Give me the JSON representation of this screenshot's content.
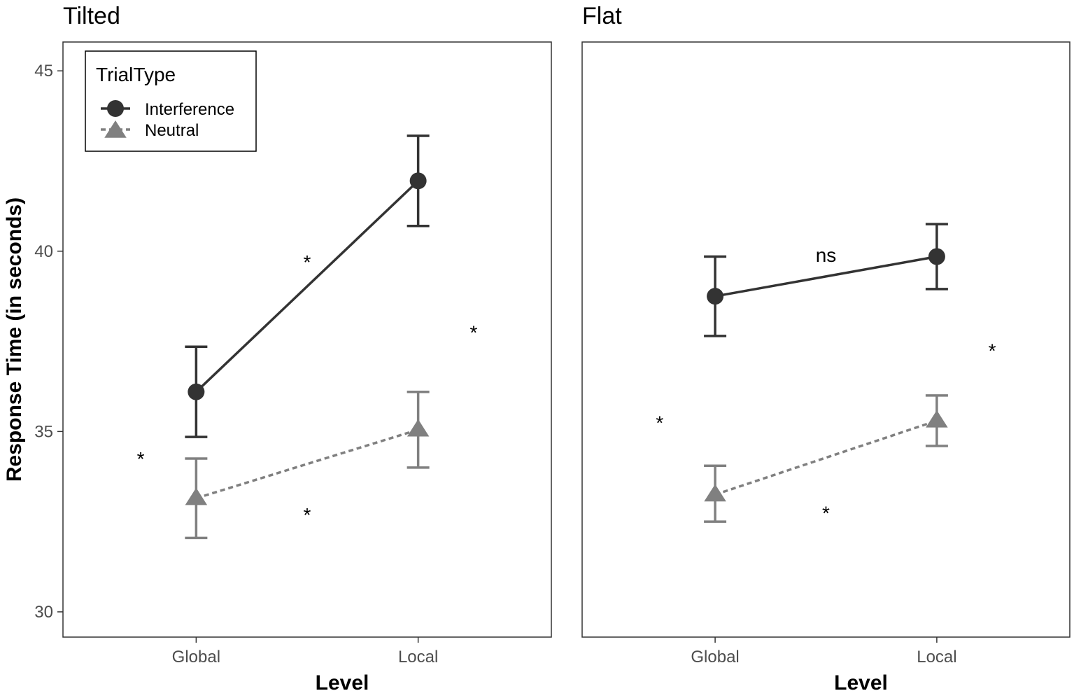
{
  "chart_data": {
    "type": "line",
    "ylabel": "Response Time (in seconds)",
    "xlabel": "Level",
    "categories": [
      "Global",
      "Local"
    ],
    "ylim": [
      29.3,
      45.8
    ],
    "yticks": [
      30,
      35,
      40,
      45
    ],
    "grid": false,
    "legend": {
      "title": "TrialType",
      "placement": "top-left inside first panel",
      "entries": [
        {
          "name": "Interference",
          "color": "#333333",
          "marker": "circle",
          "line": "solid"
        },
        {
          "name": "Neutral",
          "color": "#808080",
          "marker": "triangle",
          "line": "dashed"
        }
      ]
    },
    "panels": [
      {
        "title": "Tilted",
        "series": [
          {
            "name": "Interference",
            "values": [
              36.1,
              41.95
            ],
            "lower": [
              34.85,
              40.7
            ],
            "upper": [
              37.35,
              43.2
            ]
          },
          {
            "name": "Neutral",
            "values": [
              33.15,
              35.05
            ],
            "lower": [
              32.05,
              34.0
            ],
            "upper": [
              34.25,
              36.1
            ]
          }
        ],
        "annotations": [
          {
            "text": "*",
            "x": 1.5,
            "y": 39.7
          },
          {
            "text": "*",
            "x": 2.25,
            "y": 37.75
          },
          {
            "text": "*",
            "x": 0.75,
            "y": 34.25
          },
          {
            "text": "*",
            "x": 1.5,
            "y": 32.7
          }
        ]
      },
      {
        "title": "Flat",
        "series": [
          {
            "name": "Interference",
            "values": [
              38.75,
              39.85
            ],
            "lower": [
              37.65,
              38.95
            ],
            "upper": [
              39.85,
              40.75
            ]
          },
          {
            "name": "Neutral",
            "values": [
              33.25,
              35.3
            ],
            "lower": [
              32.5,
              34.6
            ],
            "upper": [
              34.05,
              36.0
            ]
          }
        ],
        "annotations": [
          {
            "text": "ns",
            "x": 1.5,
            "y": 39.9
          },
          {
            "text": "*",
            "x": 2.25,
            "y": 37.25
          },
          {
            "text": "*",
            "x": 0.75,
            "y": 35.25
          },
          {
            "text": "*",
            "x": 1.5,
            "y": 32.75
          }
        ]
      }
    ]
  }
}
